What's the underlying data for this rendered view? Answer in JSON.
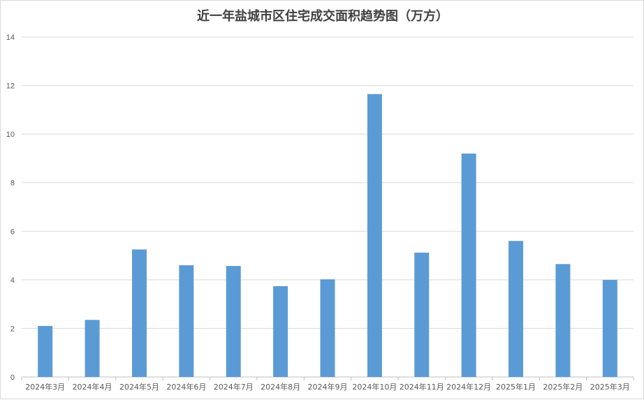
{
  "chart_data": {
    "type": "bar",
    "title": "近一年盐城市区住宅成交面积趋势图（万方）",
    "xlabel": "",
    "ylabel": "",
    "categories": [
      "2024年3月",
      "2024年4月",
      "2024年5月",
      "2024年6月",
      "2024年7月",
      "2024年8月",
      "2024年9月",
      "2024年10月",
      "2024年11月",
      "2024年12月",
      "2025年1月",
      "2025年2月",
      "2025年3月"
    ],
    "series": [
      {
        "values": [
          2.1,
          2.35,
          5.25,
          4.6,
          4.57,
          3.74,
          4.02,
          11.65,
          5.12,
          9.2,
          5.6,
          4.65,
          4.0
        ]
      }
    ],
    "ylim": [
      0,
      14
    ],
    "yticks": [
      0,
      2,
      4,
      6,
      8,
      10,
      12,
      14
    ],
    "grid": true,
    "legend": "none",
    "colors": {
      "bar": "#5b9bd5",
      "grid": "#d9d9d9",
      "text": "#595959",
      "title": "#404040"
    }
  }
}
